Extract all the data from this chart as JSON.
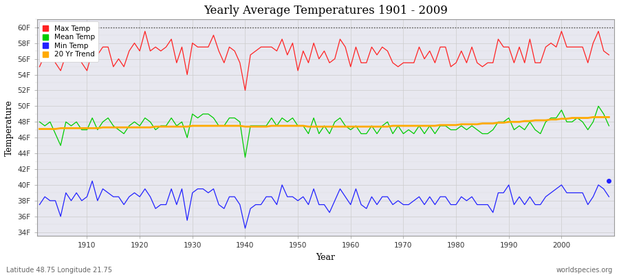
{
  "title": "Yearly Average Temperatures 1901 - 2009",
  "xlabel": "Year",
  "ylabel": "Temperature",
  "subtitle_left": "Latitude 48.75 Longitude 21.75",
  "subtitle_right": "worldspecies.org",
  "fig_bg_color": "#ffffff",
  "plot_bg_color": "#e8e8f0",
  "max_temp_color": "#ff2222",
  "mean_temp_color": "#00cc00",
  "min_temp_color": "#2222ff",
  "trend_color": "#ffaa00",
  "ylim": [
    33.5,
    61
  ],
  "xlim": [
    1900.5,
    2010
  ],
  "yticks": [
    34,
    36,
    38,
    40,
    42,
    44,
    46,
    48,
    50,
    52,
    54,
    56,
    58,
    60
  ],
  "xticks": [
    1910,
    1920,
    1930,
    1940,
    1950,
    1960,
    1970,
    1980,
    1990,
    2000
  ],
  "years": [
    1901,
    1902,
    1903,
    1904,
    1905,
    1906,
    1907,
    1908,
    1909,
    1910,
    1911,
    1912,
    1913,
    1914,
    1915,
    1916,
    1917,
    1918,
    1919,
    1920,
    1921,
    1922,
    1923,
    1924,
    1925,
    1926,
    1927,
    1928,
    1929,
    1930,
    1931,
    1932,
    1933,
    1934,
    1935,
    1936,
    1937,
    1938,
    1939,
    1940,
    1941,
    1942,
    1943,
    1944,
    1945,
    1946,
    1947,
    1948,
    1949,
    1950,
    1951,
    1952,
    1953,
    1954,
    1955,
    1956,
    1957,
    1958,
    1959,
    1960,
    1961,
    1962,
    1963,
    1964,
    1965,
    1966,
    1967,
    1968,
    1969,
    1970,
    1971,
    1972,
    1973,
    1974,
    1975,
    1976,
    1977,
    1978,
    1979,
    1980,
    1981,
    1982,
    1983,
    1984,
    1985,
    1986,
    1987,
    1988,
    1989,
    1990,
    1991,
    1992,
    1993,
    1994,
    1995,
    1996,
    1997,
    1998,
    1999,
    2000,
    2001,
    2002,
    2003,
    2004,
    2005,
    2006,
    2007,
    2008,
    2009
  ],
  "max_temp": [
    55.0,
    56.5,
    57.0,
    55.5,
    54.5,
    56.5,
    57.5,
    57.0,
    55.5,
    54.5,
    57.0,
    56.5,
    57.5,
    57.5,
    55.0,
    56.0,
    55.0,
    57.0,
    58.0,
    57.0,
    59.5,
    57.0,
    57.5,
    57.0,
    57.5,
    58.5,
    55.5,
    57.5,
    54.0,
    58.0,
    57.5,
    57.5,
    57.5,
    59.0,
    57.0,
    55.5,
    57.5,
    57.0,
    55.5,
    52.0,
    56.5,
    57.0,
    57.5,
    57.5,
    57.5,
    57.0,
    58.5,
    56.5,
    58.0,
    54.5,
    57.0,
    55.5,
    58.0,
    56.0,
    57.0,
    55.5,
    56.0,
    58.5,
    57.5,
    55.0,
    57.5,
    55.5,
    55.5,
    57.5,
    56.5,
    57.5,
    57.0,
    55.5,
    55.0,
    55.5,
    55.5,
    55.5,
    57.5,
    56.0,
    57.0,
    55.5,
    57.5,
    57.5,
    55.0,
    55.5,
    57.0,
    55.5,
    57.5,
    55.5,
    55.0,
    55.5,
    55.5,
    58.5,
    57.5,
    57.5,
    55.5,
    57.5,
    55.5,
    58.5,
    55.5,
    55.5,
    57.5,
    58.0,
    57.5,
    59.5,
    57.5,
    57.5,
    57.5,
    57.5,
    55.5,
    58.0,
    59.5,
    57.0,
    56.5
  ],
  "mean_temp": [
    48.0,
    47.5,
    48.0,
    46.5,
    45.0,
    48.0,
    47.5,
    48.0,
    47.0,
    47.0,
    48.5,
    47.0,
    48.0,
    48.5,
    47.5,
    47.0,
    46.5,
    47.5,
    48.0,
    47.5,
    48.5,
    48.0,
    47.0,
    47.5,
    47.5,
    48.5,
    47.5,
    48.0,
    46.0,
    49.0,
    48.5,
    49.0,
    49.0,
    48.5,
    47.5,
    47.5,
    48.5,
    48.5,
    48.0,
    43.5,
    47.5,
    47.5,
    47.5,
    47.5,
    48.5,
    47.5,
    48.5,
    48.0,
    48.5,
    47.5,
    47.5,
    46.5,
    48.5,
    46.5,
    47.5,
    46.5,
    48.0,
    48.5,
    47.5,
    47.0,
    47.5,
    46.5,
    46.5,
    47.5,
    46.5,
    47.5,
    48.0,
    46.5,
    47.5,
    46.5,
    47.0,
    46.5,
    47.5,
    46.5,
    47.5,
    46.5,
    47.5,
    47.5,
    47.0,
    47.0,
    47.5,
    47.0,
    47.5,
    47.0,
    46.5,
    46.5,
    47.0,
    48.0,
    48.0,
    48.5,
    47.0,
    47.5,
    47.0,
    48.0,
    47.0,
    46.5,
    48.0,
    48.5,
    48.5,
    49.5,
    48.0,
    48.0,
    48.5,
    48.0,
    47.0,
    48.0,
    50.0,
    49.0,
    47.5
  ],
  "min_temp": [
    37.5,
    38.5,
    38.0,
    38.0,
    36.0,
    39.0,
    38.0,
    39.0,
    38.0,
    38.5,
    40.5,
    38.0,
    39.5,
    39.0,
    38.5,
    38.5,
    37.5,
    38.5,
    39.0,
    38.5,
    39.5,
    38.5,
    37.0,
    37.5,
    37.5,
    39.5,
    37.5,
    39.5,
    35.5,
    39.0,
    39.5,
    39.5,
    39.0,
    39.5,
    37.5,
    37.0,
    38.5,
    38.5,
    37.5,
    34.5,
    37.0,
    37.5,
    37.5,
    38.5,
    38.5,
    37.5,
    40.0,
    38.5,
    38.5,
    38.0,
    38.5,
    37.5,
    39.5,
    37.5,
    37.5,
    36.5,
    38.0,
    39.5,
    38.5,
    37.5,
    39.5,
    37.5,
    37.0,
    38.5,
    37.5,
    38.5,
    38.5,
    37.5,
    38.0,
    37.5,
    37.5,
    38.0,
    38.5,
    37.5,
    38.5,
    37.5,
    38.5,
    38.5,
    37.5,
    37.5,
    38.5,
    38.0,
    38.5,
    37.5,
    37.5,
    37.5,
    36.5,
    39.0,
    39.0,
    40.0,
    37.5,
    38.5,
    37.5,
    38.5,
    37.5,
    37.5,
    38.5,
    39.0,
    39.5,
    40.0,
    39.0,
    39.0,
    39.0,
    39.0,
    37.5,
    38.5,
    40.0,
    39.5,
    38.5
  ],
  "trend": [
    47.1,
    47.1,
    47.1,
    47.1,
    47.2,
    47.2,
    47.2,
    47.2,
    47.2,
    47.2,
    47.2,
    47.2,
    47.3,
    47.3,
    47.3,
    47.3,
    47.3,
    47.3,
    47.3,
    47.3,
    47.3,
    47.3,
    47.4,
    47.4,
    47.4,
    47.4,
    47.4,
    47.4,
    47.4,
    47.5,
    47.5,
    47.5,
    47.5,
    47.5,
    47.5,
    47.5,
    47.5,
    47.5,
    47.5,
    47.4,
    47.4,
    47.4,
    47.4,
    47.4,
    47.5,
    47.5,
    47.5,
    47.5,
    47.5,
    47.5,
    47.5,
    47.4,
    47.4,
    47.4,
    47.4,
    47.4,
    47.4,
    47.4,
    47.4,
    47.4,
    47.4,
    47.4,
    47.4,
    47.4,
    47.4,
    47.4,
    47.4,
    47.5,
    47.5,
    47.5,
    47.5,
    47.5,
    47.5,
    47.5,
    47.5,
    47.5,
    47.6,
    47.6,
    47.6,
    47.6,
    47.7,
    47.7,
    47.7,
    47.7,
    47.8,
    47.8,
    47.8,
    47.9,
    47.9,
    48.0,
    48.0,
    48.0,
    48.1,
    48.1,
    48.2,
    48.2,
    48.2,
    48.3,
    48.3,
    48.4,
    48.4,
    48.5,
    48.5,
    48.5,
    48.5,
    48.6,
    48.6,
    48.6,
    48.6
  ]
}
